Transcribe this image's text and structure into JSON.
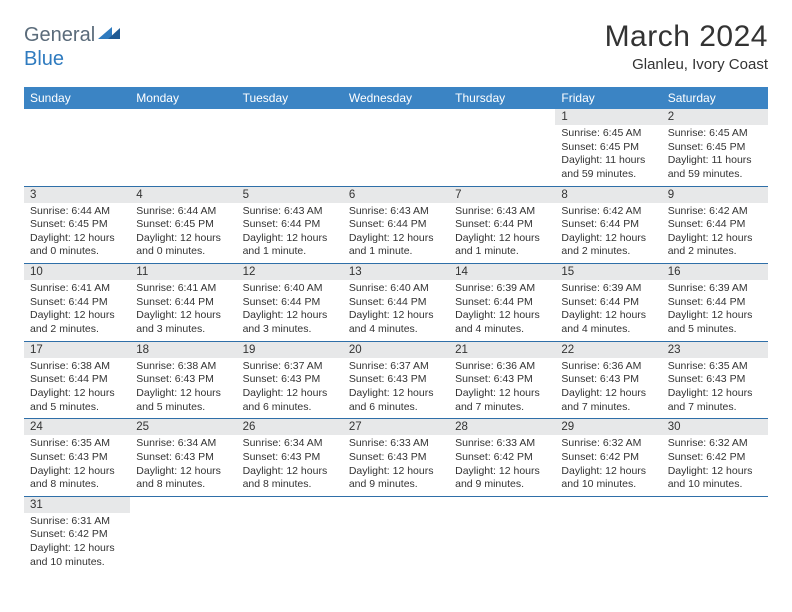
{
  "logo": {
    "text1": "General",
    "text2": "Blue"
  },
  "title": "March 2024",
  "location": "Glanleu, Ivory Coast",
  "headers": [
    "Sunday",
    "Monday",
    "Tuesday",
    "Wednesday",
    "Thursday",
    "Friday",
    "Saturday"
  ],
  "colors": {
    "header_bg": "#3b84c4",
    "header_text": "#ffffff",
    "daynum_bg": "#e7e8e9",
    "row_border": "#2f6fa8",
    "logo_gray": "#5a6b7a",
    "logo_blue": "#2f7bbf"
  },
  "weeks": [
    [
      null,
      null,
      null,
      null,
      null,
      {
        "num": "1",
        "sunrise": "Sunrise: 6:45 AM",
        "sunset": "Sunset: 6:45 PM",
        "daylight": "Daylight: 11 hours and 59 minutes."
      },
      {
        "num": "2",
        "sunrise": "Sunrise: 6:45 AM",
        "sunset": "Sunset: 6:45 PM",
        "daylight": "Daylight: 11 hours and 59 minutes."
      }
    ],
    [
      {
        "num": "3",
        "sunrise": "Sunrise: 6:44 AM",
        "sunset": "Sunset: 6:45 PM",
        "daylight": "Daylight: 12 hours and 0 minutes."
      },
      {
        "num": "4",
        "sunrise": "Sunrise: 6:44 AM",
        "sunset": "Sunset: 6:45 PM",
        "daylight": "Daylight: 12 hours and 0 minutes."
      },
      {
        "num": "5",
        "sunrise": "Sunrise: 6:43 AM",
        "sunset": "Sunset: 6:44 PM",
        "daylight": "Daylight: 12 hours and 1 minute."
      },
      {
        "num": "6",
        "sunrise": "Sunrise: 6:43 AM",
        "sunset": "Sunset: 6:44 PM",
        "daylight": "Daylight: 12 hours and 1 minute."
      },
      {
        "num": "7",
        "sunrise": "Sunrise: 6:43 AM",
        "sunset": "Sunset: 6:44 PM",
        "daylight": "Daylight: 12 hours and 1 minute."
      },
      {
        "num": "8",
        "sunrise": "Sunrise: 6:42 AM",
        "sunset": "Sunset: 6:44 PM",
        "daylight": "Daylight: 12 hours and 2 minutes."
      },
      {
        "num": "9",
        "sunrise": "Sunrise: 6:42 AM",
        "sunset": "Sunset: 6:44 PM",
        "daylight": "Daylight: 12 hours and 2 minutes."
      }
    ],
    [
      {
        "num": "10",
        "sunrise": "Sunrise: 6:41 AM",
        "sunset": "Sunset: 6:44 PM",
        "daylight": "Daylight: 12 hours and 2 minutes."
      },
      {
        "num": "11",
        "sunrise": "Sunrise: 6:41 AM",
        "sunset": "Sunset: 6:44 PM",
        "daylight": "Daylight: 12 hours and 3 minutes."
      },
      {
        "num": "12",
        "sunrise": "Sunrise: 6:40 AM",
        "sunset": "Sunset: 6:44 PM",
        "daylight": "Daylight: 12 hours and 3 minutes."
      },
      {
        "num": "13",
        "sunrise": "Sunrise: 6:40 AM",
        "sunset": "Sunset: 6:44 PM",
        "daylight": "Daylight: 12 hours and 4 minutes."
      },
      {
        "num": "14",
        "sunrise": "Sunrise: 6:39 AM",
        "sunset": "Sunset: 6:44 PM",
        "daylight": "Daylight: 12 hours and 4 minutes."
      },
      {
        "num": "15",
        "sunrise": "Sunrise: 6:39 AM",
        "sunset": "Sunset: 6:44 PM",
        "daylight": "Daylight: 12 hours and 4 minutes."
      },
      {
        "num": "16",
        "sunrise": "Sunrise: 6:39 AM",
        "sunset": "Sunset: 6:44 PM",
        "daylight": "Daylight: 12 hours and 5 minutes."
      }
    ],
    [
      {
        "num": "17",
        "sunrise": "Sunrise: 6:38 AM",
        "sunset": "Sunset: 6:44 PM",
        "daylight": "Daylight: 12 hours and 5 minutes."
      },
      {
        "num": "18",
        "sunrise": "Sunrise: 6:38 AM",
        "sunset": "Sunset: 6:43 PM",
        "daylight": "Daylight: 12 hours and 5 minutes."
      },
      {
        "num": "19",
        "sunrise": "Sunrise: 6:37 AM",
        "sunset": "Sunset: 6:43 PM",
        "daylight": "Daylight: 12 hours and 6 minutes."
      },
      {
        "num": "20",
        "sunrise": "Sunrise: 6:37 AM",
        "sunset": "Sunset: 6:43 PM",
        "daylight": "Daylight: 12 hours and 6 minutes."
      },
      {
        "num": "21",
        "sunrise": "Sunrise: 6:36 AM",
        "sunset": "Sunset: 6:43 PM",
        "daylight": "Daylight: 12 hours and 7 minutes."
      },
      {
        "num": "22",
        "sunrise": "Sunrise: 6:36 AM",
        "sunset": "Sunset: 6:43 PM",
        "daylight": "Daylight: 12 hours and 7 minutes."
      },
      {
        "num": "23",
        "sunrise": "Sunrise: 6:35 AM",
        "sunset": "Sunset: 6:43 PM",
        "daylight": "Daylight: 12 hours and 7 minutes."
      }
    ],
    [
      {
        "num": "24",
        "sunrise": "Sunrise: 6:35 AM",
        "sunset": "Sunset: 6:43 PM",
        "daylight": "Daylight: 12 hours and 8 minutes."
      },
      {
        "num": "25",
        "sunrise": "Sunrise: 6:34 AM",
        "sunset": "Sunset: 6:43 PM",
        "daylight": "Daylight: 12 hours and 8 minutes."
      },
      {
        "num": "26",
        "sunrise": "Sunrise: 6:34 AM",
        "sunset": "Sunset: 6:43 PM",
        "daylight": "Daylight: 12 hours and 8 minutes."
      },
      {
        "num": "27",
        "sunrise": "Sunrise: 6:33 AM",
        "sunset": "Sunset: 6:43 PM",
        "daylight": "Daylight: 12 hours and 9 minutes."
      },
      {
        "num": "28",
        "sunrise": "Sunrise: 6:33 AM",
        "sunset": "Sunset: 6:42 PM",
        "daylight": "Daylight: 12 hours and 9 minutes."
      },
      {
        "num": "29",
        "sunrise": "Sunrise: 6:32 AM",
        "sunset": "Sunset: 6:42 PM",
        "daylight": "Daylight: 12 hours and 10 minutes."
      },
      {
        "num": "30",
        "sunrise": "Sunrise: 6:32 AM",
        "sunset": "Sunset: 6:42 PM",
        "daylight": "Daylight: 12 hours and 10 minutes."
      }
    ],
    [
      {
        "num": "31",
        "sunrise": "Sunrise: 6:31 AM",
        "sunset": "Sunset: 6:42 PM",
        "daylight": "Daylight: 12 hours and 10 minutes."
      },
      null,
      null,
      null,
      null,
      null,
      null
    ]
  ]
}
